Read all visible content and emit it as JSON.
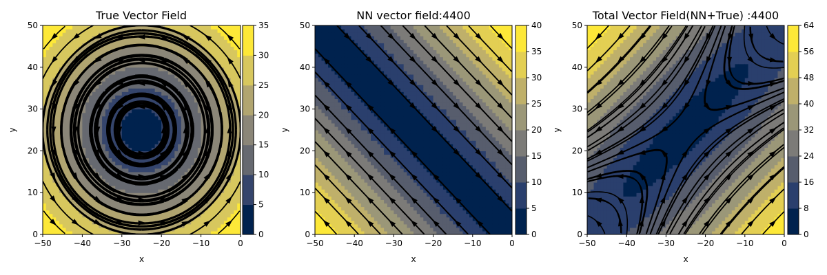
{
  "chart_data": [
    {
      "type": "heatmap",
      "subtype": "streamplot over filled contour",
      "title": "True Vector Field",
      "xlabel": "x",
      "ylabel": "y",
      "xlim": [
        -50,
        0
      ],
      "ylim": [
        0,
        50
      ],
      "xticks": [
        "−50",
        "−40",
        "−30",
        "−20",
        "−10",
        "0"
      ],
      "yticks": [
        "0",
        "10",
        "20",
        "30",
        "40",
        "50"
      ],
      "field": "rotation about a center",
      "center": [
        -25,
        25
      ],
      "colorbar": {
        "ticks": [
          "0",
          "5",
          "10",
          "15",
          "20",
          "25",
          "30",
          "35"
        ],
        "levels": [
          0,
          5,
          10,
          15,
          20,
          25,
          30,
          35
        ],
        "colors": [
          "#00224e",
          "#35456c",
          "#666970",
          "#8b8678",
          "#b1a570",
          "#d7c75e",
          "#fde838"
        ]
      }
    },
    {
      "type": "heatmap",
      "subtype": "streamplot over filled contour",
      "title": "NN vector field:4400",
      "xlabel": "x",
      "ylabel": "y",
      "xlim": [
        -50,
        0
      ],
      "ylim": [
        0,
        50
      ],
      "xticks": [
        "−50",
        "−40",
        "−30",
        "−20",
        "−10",
        "0"
      ],
      "yticks": [
        "0",
        "10",
        "20",
        "30",
        "40",
        "50"
      ],
      "field": "shear flow, low magnitude along the diagonal from (-50,50) to (0,0)",
      "colorbar": {
        "ticks": [
          "0",
          "5",
          "10",
          "15",
          "20",
          "25",
          "30",
          "35",
          "40"
        ],
        "levels": [
          0,
          5,
          10,
          15,
          20,
          25,
          30,
          35,
          40
        ],
        "colors": [
          "#00224e",
          "#2a3f6d",
          "#575d6d",
          "#7c7b78",
          "#9b9778",
          "#bfb06a",
          "#e3cf53",
          "#fde838"
        ]
      }
    },
    {
      "type": "heatmap",
      "subtype": "streamplot over filled contour",
      "title": "Total Vector Field(NN+True) :4400",
      "xlabel": "x",
      "ylabel": "y",
      "xlim": [
        -50,
        0
      ],
      "ylim": [
        0,
        50
      ],
      "xticks": [
        "−50",
        "−40",
        "−30",
        "−20",
        "−10",
        "0"
      ],
      "yticks": [
        "0",
        "10",
        "20",
        "30",
        "40",
        "50"
      ],
      "field": "sum of rotation and shear",
      "center": [
        -25,
        25
      ],
      "colorbar": {
        "ticks": [
          "0",
          "8",
          "16",
          "24",
          "32",
          "40",
          "48",
          "56",
          "64"
        ],
        "levels": [
          0,
          8,
          16,
          24,
          32,
          40,
          48,
          56,
          64
        ],
        "colors": [
          "#00224e",
          "#2a3f6d",
          "#575d6d",
          "#7c7b78",
          "#9b9778",
          "#bfb06a",
          "#e3cf53",
          "#fde838"
        ]
      }
    }
  ]
}
